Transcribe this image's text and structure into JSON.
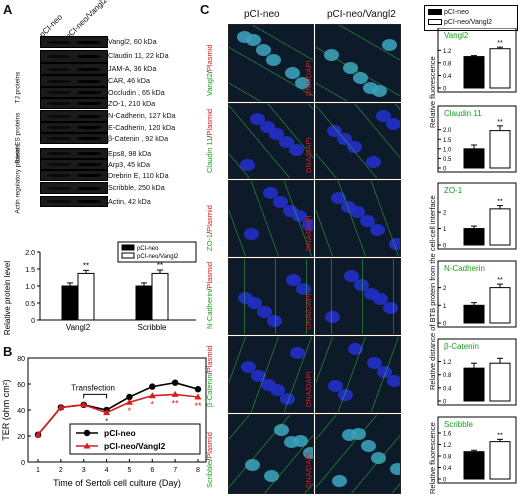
{
  "panelA": {
    "letter": "A",
    "lanes": [
      "pCI-neo",
      "pCI-neo/Vangl2"
    ],
    "groups": [
      "TJ proteins",
      "Basal ES proteins",
      "Actin regulatory proteins"
    ],
    "blots": [
      "Vangl2, 60 kDa",
      "Claudin 11, 22 kDa",
      "JAM-A, 36 kDa",
      "CAR, 46 kDa",
      "Occludin , 65 kDa",
      "ZO-1, 210 kDa",
      "N-Cadherin, 127 kDa",
      "E-Cadherin, 120 kDa",
      "β-Catenin , 92 kDa",
      "Eps8, 98 kDa",
      "Arp3, 45 kDa",
      "Drebrin E, 110 kDa",
      "Scribble, 250 kDa",
      "Actin, 42 kDa"
    ],
    "chart_data": {
      "type": "bar",
      "ylabel": "Relative protein level",
      "categories": [
        "Vangl2",
        "Scribble"
      ],
      "ylim": [
        0,
        2.0
      ],
      "yticks": [
        "0",
        "0.5",
        "1.0",
        "1.5",
        "2.0"
      ],
      "series": [
        {
          "name": "pCI-neo",
          "values": [
            1.0,
            1.0
          ],
          "errors": [
            0.09,
            0.09
          ],
          "color": "#000000"
        },
        {
          "name": "pCI-neo/Vangl2",
          "values": [
            1.37,
            1.37
          ],
          "errors": [
            0.09,
            0.1
          ],
          "color": "#ffffff"
        }
      ],
      "significance": [
        "**",
        "**"
      ],
      "legend": "top-right"
    }
  },
  "panelB": {
    "letter": "B",
    "annotation": "Transfection",
    "chart_data": {
      "type": "line",
      "xlabel": "Time of Sertoli cell culture (Day)",
      "ylabel": "TER (ohm cm²)",
      "x": [
        1,
        2,
        3,
        4,
        5,
        6,
        7,
        8
      ],
      "ylim": [
        0,
        80
      ],
      "yticks": [
        "0",
        "20",
        "40",
        "60",
        "80"
      ],
      "series": [
        {
          "name": "pCI-neo",
          "values": [
            21,
            42,
            44,
            40,
            50,
            58,
            61,
            56
          ],
          "color": "#000000",
          "marker": "circle"
        },
        {
          "name": "pCI-neo/Vangl2",
          "values": [
            21,
            42,
            44,
            38,
            46,
            51,
            52,
            50
          ],
          "color": "#d42020",
          "marker": "triangle"
        }
      ],
      "significance": {
        "x": [
          4,
          5,
          6,
          7,
          8
        ],
        "labels": [
          "*",
          "*",
          "*",
          "**",
          "**"
        ]
      },
      "legend": "bottom-right"
    }
  },
  "panelC": {
    "letter": "C",
    "col_headers": [
      "pCI-neo",
      "pCI-neo/Vangl2"
    ],
    "rows": [
      {
        "protein": "Vangl2",
        "plasmid": "Plasmid",
        "dna": "DNA/DAPI"
      },
      {
        "protein": "Claudin 11",
        "plasmid": "Plasmid",
        "dna": "DNA/DAPI"
      },
      {
        "protein": "ZO-1",
        "plasmid": "Plasmid",
        "dna": "DNA/DAPI"
      },
      {
        "protein": "N-Cadherin",
        "plasmid": "Plasmid",
        "dna": "DNA/DAPI"
      },
      {
        "protein": "β-Catenin",
        "plasmid": "Plasmid",
        "dna": "DNA/DAPI"
      },
      {
        "protein": "Scribble",
        "plasmid": "Plasmid",
        "dna": "DNA/DAPI"
      }
    ],
    "legend": [
      "pCI-neo",
      "pCI-neo/Vangl2"
    ],
    "ylabel_top": "Relative fluorescence",
    "ylabel_mid": "Relative distance of BTB protein from the cell-cell interface",
    "ylabel_bottom": "Relative fluorescence",
    "chart_data": [
      {
        "type": "bar",
        "title": "Vangl2",
        "categories": [
          "pCI-neo",
          "pCI-neo/Vangl2"
        ],
        "values": [
          1.0,
          1.25
        ],
        "errors": [
          0.03,
          0.05
        ],
        "ylim": [
          0,
          1.4
        ],
        "yticks": [
          "0",
          "0.4",
          "0.8",
          "1.2"
        ],
        "significance": "**"
      },
      {
        "type": "bar",
        "title": "Claudin 11",
        "categories": [
          "pCI-neo",
          "pCI-neo/Vangl2"
        ],
        "values": [
          1.0,
          1.95
        ],
        "errors": [
          0.2,
          0.25
        ],
        "ylim": [
          0,
          2.4
        ],
        "yticks": [
          "0",
          "0.5",
          "1.0",
          "1.5",
          "2.0"
        ],
        "significance": "**"
      },
      {
        "type": "bar",
        "title": "ZO-1",
        "categories": [
          "pCI-neo",
          "pCI-neo/Vangl2"
        ],
        "values": [
          1.0,
          2.2
        ],
        "errors": [
          0.15,
          0.2
        ],
        "ylim": [
          0,
          2.8
        ],
        "yticks": [
          "0",
          "1",
          "2"
        ],
        "significance": "**"
      },
      {
        "type": "bar",
        "title": "N-Cadherin",
        "categories": [
          "pCI-neo",
          "pCI-neo/Vangl2"
        ],
        "values": [
          1.0,
          2.0
        ],
        "errors": [
          0.15,
          0.2
        ],
        "ylim": [
          0,
          2.6
        ],
        "yticks": [
          "0",
          "1",
          "2"
        ],
        "significance": "**"
      },
      {
        "type": "bar",
        "title": "β-Catenin",
        "categories": [
          "pCI-neo",
          "pCI-neo/Vangl2"
        ],
        "values": [
          1.0,
          1.15
        ],
        "errors": [
          0.15,
          0.15
        ],
        "ylim": [
          0,
          1.4
        ],
        "yticks": [
          "0",
          "0.4",
          "0.8",
          "1.2"
        ],
        "significance": ""
      },
      {
        "type": "bar",
        "title": "Scribble",
        "categories": [
          "pCI-neo",
          "pCI-neo/Vangl2"
        ],
        "values": [
          0.95,
          1.3
        ],
        "errors": [
          0.05,
          0.08
        ],
        "ylim": [
          0,
          1.6
        ],
        "yticks": [
          "0",
          "0.4",
          "0.8",
          "1.2",
          "1.6"
        ],
        "significance": "**"
      }
    ]
  }
}
